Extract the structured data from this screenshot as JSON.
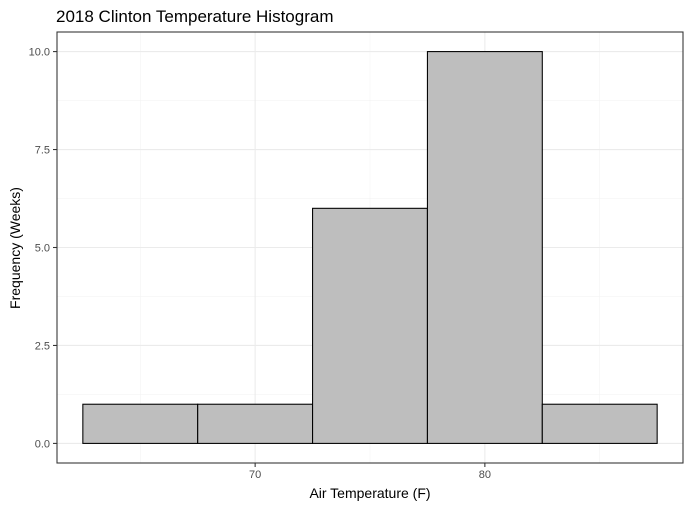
{
  "chart_data": {
    "type": "bar",
    "title": "2018 Clinton Temperature Histogram",
    "xlabel": "Air Temperature (F)",
    "ylabel": "Frequency (Weeks)",
    "bins": [
      {
        "x_start": 62.5,
        "x_end": 67.5,
        "count": 1
      },
      {
        "x_start": 67.5,
        "x_end": 72.5,
        "count": 1
      },
      {
        "x_start": 72.5,
        "x_end": 77.5,
        "count": 6
      },
      {
        "x_start": 77.5,
        "x_end": 82.5,
        "count": 10
      },
      {
        "x_start": 82.5,
        "x_end": 87.5,
        "count": 1
      }
    ],
    "xlim": [
      61.375,
      88.625
    ],
    "ylim": [
      -0.5,
      10.5
    ],
    "x_ticks": [
      70,
      80
    ],
    "x_tick_labels": [
      "70",
      "80"
    ],
    "y_ticks": [
      0,
      2.5,
      5,
      7.5,
      10
    ],
    "y_tick_labels": [
      "0.0",
      "2.5",
      "5.0",
      "7.5",
      "10.0"
    ],
    "grid": true,
    "colors": {
      "bar_fill": "#bebebe",
      "bar_outline": "#000000"
    }
  }
}
